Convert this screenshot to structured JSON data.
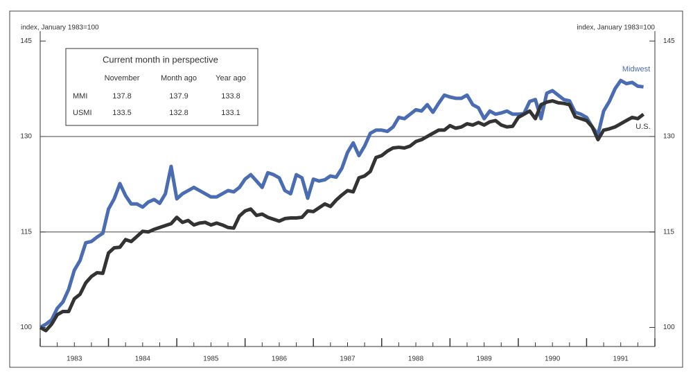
{
  "chart_data": {
    "type": "line",
    "y_label": "index, January 1983=100",
    "y2_label": "index, January 1983=100",
    "xlim": [
      1983,
      1992
    ],
    "xticks": [
      {
        "value": 1983.5,
        "label": "1983"
      },
      {
        "value": 1984.5,
        "label": "1984"
      },
      {
        "value": 1985.5,
        "label": "1985"
      },
      {
        "value": 1986.5,
        "label": "1986"
      },
      {
        "value": 1987.5,
        "label": "1987"
      },
      {
        "value": 1988.5,
        "label": "1988"
      },
      {
        "value": 1989.5,
        "label": "1989"
      },
      {
        "value": 1990.5,
        "label": "1990"
      },
      {
        "value": 1991.5,
        "label": "1991"
      }
    ],
    "ylim": [
      97,
      146
    ],
    "yticks": [
      100,
      115,
      130,
      145
    ],
    "y2lim": [
      97,
      146
    ],
    "y2ticks": [
      100,
      115,
      130,
      145
    ],
    "grid": true,
    "x": [
      1983.0,
      1983.083,
      1983.167,
      1983.25,
      1983.333,
      1983.417,
      1983.5,
      1983.583,
      1983.667,
      1983.75,
      1983.833,
      1983.917,
      1984.0,
      1984.083,
      1984.167,
      1984.25,
      1984.333,
      1984.417,
      1984.5,
      1984.583,
      1984.667,
      1984.75,
      1984.833,
      1984.917,
      1985.0,
      1985.083,
      1985.167,
      1985.25,
      1985.333,
      1985.417,
      1985.5,
      1985.583,
      1985.667,
      1985.75,
      1985.833,
      1985.917,
      1986.0,
      1986.083,
      1986.167,
      1986.25,
      1986.333,
      1986.417,
      1986.5,
      1986.583,
      1986.667,
      1986.75,
      1986.833,
      1986.917,
      1987.0,
      1987.083,
      1987.167,
      1987.25,
      1987.333,
      1987.417,
      1987.5,
      1987.583,
      1987.667,
      1987.75,
      1987.833,
      1987.917,
      1988.0,
      1988.083,
      1988.167,
      1988.25,
      1988.333,
      1988.417,
      1988.5,
      1988.583,
      1988.667,
      1988.75,
      1988.833,
      1988.917,
      1989.0,
      1989.083,
      1989.167,
      1989.25,
      1989.333,
      1989.417,
      1989.5,
      1989.583,
      1989.667,
      1989.75,
      1989.833,
      1989.917,
      1990.0,
      1990.083,
      1990.167,
      1990.25,
      1990.333,
      1990.417,
      1990.5,
      1990.583,
      1990.667,
      1990.75,
      1990.833,
      1990.917,
      1991.0,
      1991.083,
      1991.167,
      1991.25,
      1991.333,
      1991.417,
      1991.5,
      1991.583,
      1991.667,
      1991.75,
      1991.833
    ],
    "series": [
      {
        "name": "Midwest",
        "color": "#4a6cb3",
        "values": [
          100,
          100.5,
          101.2,
          103,
          104,
          106,
          109,
          110.5,
          113.3,
          113.5,
          114.2,
          114.8,
          118.6,
          120.2,
          122.6,
          120.7,
          119.4,
          119.4,
          118.9,
          119.7,
          120.1,
          119.5,
          121,
          125.3,
          120.2,
          121,
          121.5,
          122,
          121.5,
          121,
          120.5,
          120.5,
          121,
          121.5,
          121.3,
          122,
          123.3,
          124,
          123,
          122,
          124.3,
          124,
          123.5,
          121.5,
          121,
          124,
          123.5,
          120.3,
          123.3,
          123,
          123.2,
          123.8,
          123.6,
          125,
          127.5,
          129,
          127,
          128.5,
          130.5,
          131,
          131,
          130.8,
          131.5,
          133,
          132.8,
          133.5,
          134.2,
          134,
          135,
          133.8,
          135.2,
          136.5,
          136.2,
          136,
          136,
          136.5,
          135,
          134.5,
          132.8,
          134,
          133.5,
          133.7,
          134,
          133.5,
          133.5,
          133.6,
          135.5,
          135.8,
          132.8,
          136.8,
          137.2,
          136.5,
          135.8,
          135.6,
          133.8,
          133.5,
          133,
          131.5,
          130.3,
          134,
          135.5,
          137.5,
          138.8,
          138.3,
          138.5,
          137.9,
          137.8
        ]
      },
      {
        "name": "U.S.",
        "color": "#333333",
        "values": [
          100,
          99.5,
          100.5,
          102,
          102.5,
          102.5,
          104.5,
          105.2,
          107,
          108,
          108.6,
          108.5,
          111.7,
          112.5,
          112.6,
          113.8,
          113.5,
          114.3,
          115.1,
          115,
          115.4,
          115.7,
          116,
          116.3,
          117.3,
          116.5,
          116.8,
          116.1,
          116.4,
          116.5,
          116.1,
          116.4,
          116.1,
          115.7,
          115.6,
          117.5,
          118.3,
          118.6,
          117.6,
          117.8,
          117.3,
          117,
          116.7,
          117.1,
          117.2,
          117.2,
          117.3,
          118.3,
          118.2,
          118.8,
          119.4,
          119,
          120,
          120.8,
          121.5,
          121.3,
          123.5,
          123.8,
          124.5,
          126.7,
          127,
          127.7,
          128.2,
          128.3,
          128.2,
          128.5,
          129.2,
          129.5,
          130,
          130.5,
          131,
          131,
          131.7,
          131.3,
          131.5,
          132,
          131.8,
          132.2,
          131.8,
          132.3,
          132.5,
          131.8,
          131.5,
          131.6,
          133,
          133.5,
          134,
          132.8,
          135,
          135.4,
          135.6,
          135.3,
          135.2,
          135,
          133.1,
          132.8,
          132.5,
          131.5,
          129.5,
          131,
          131.2,
          131.5,
          132,
          132.5,
          133,
          132.8,
          133.5
        ]
      }
    ],
    "inset": {
      "title": "Current month in perspective",
      "columns": [
        "November",
        "Month ago",
        "Year ago"
      ],
      "rows": [
        {
          "label": "MMI",
          "values": [
            137.8,
            137.9,
            133.8
          ]
        },
        {
          "label": "USMI",
          "values": [
            133.5,
            132.8,
            133.1
          ]
        }
      ]
    }
  }
}
